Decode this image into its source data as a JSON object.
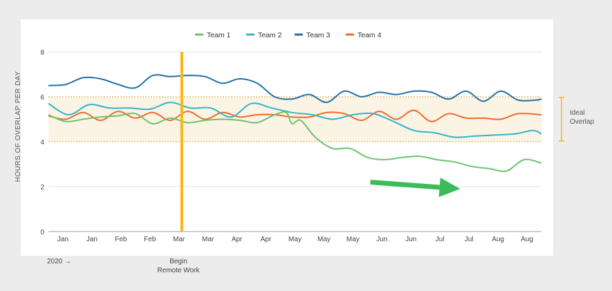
{
  "chart_data": {
    "type": "line",
    "x_labels": [
      "Jan",
      "Jan",
      "Feb",
      "Feb",
      "Mar",
      "Mar",
      "Apr",
      "Apr",
      "May",
      "May",
      "May",
      "Jun",
      "Jun",
      "Jul",
      "Jul",
      "Aug",
      "Aug"
    ],
    "x_range": [
      0,
      17
    ],
    "ylabel": "HOURS OF OVERLAP PER DAY",
    "ylim": [
      0,
      8
    ],
    "y_ticks": [
      0,
      2,
      4,
      6,
      8
    ],
    "grid": true,
    "legend_position": "top-center",
    "series": [
      {
        "name": "Team 1",
        "color": "#6cc26c",
        "x": [
          0,
          0.6,
          1.2,
          1.8,
          2.4,
          3.0,
          3.6,
          4.2,
          4.8,
          5.4,
          6.0,
          6.6,
          7.2,
          7.8,
          8.2,
          8.4,
          8.7,
          9.2,
          9.8,
          10.4,
          11.0,
          11.6,
          12.2,
          12.8,
          13.4,
          14.0,
          14.6,
          15.2,
          15.8,
          16.4,
          17.0
        ],
        "y": [
          5.2,
          4.9,
          5.0,
          5.1,
          5.15,
          5.25,
          4.8,
          5.05,
          4.85,
          4.95,
          5.0,
          4.95,
          4.85,
          5.2,
          5.3,
          4.8,
          4.95,
          4.2,
          3.7,
          3.7,
          3.3,
          3.2,
          3.3,
          3.35,
          3.2,
          3.1,
          2.9,
          2.8,
          2.7,
          3.2,
          3.05
        ]
      },
      {
        "name": "Team 2",
        "color": "#30b4c8",
        "x": [
          0,
          0.7,
          1.4,
          2.1,
          2.8,
          3.5,
          4.2,
          4.9,
          5.6,
          6.3,
          7.0,
          7.7,
          8.4,
          9.1,
          9.8,
          10.5,
          11.2,
          11.9,
          12.6,
          13.3,
          14.0,
          14.7,
          15.4,
          16.1,
          16.7,
          17.0
        ],
        "y": [
          5.7,
          5.2,
          5.65,
          5.5,
          5.5,
          5.45,
          5.75,
          5.5,
          5.5,
          5.1,
          5.7,
          5.5,
          5.3,
          5.2,
          5.0,
          5.2,
          5.25,
          4.9,
          4.5,
          4.4,
          4.2,
          4.25,
          4.3,
          4.35,
          4.5,
          4.35
        ]
      },
      {
        "name": "Team 3",
        "color": "#1f6fa8",
        "x": [
          0,
          0.6,
          1.2,
          1.8,
          2.4,
          3.0,
          3.6,
          4.2,
          4.8,
          5.4,
          6.0,
          6.6,
          7.2,
          7.8,
          8.4,
          9.0,
          9.6,
          10.2,
          10.8,
          11.4,
          12.0,
          12.6,
          13.2,
          13.8,
          14.4,
          15.0,
          15.6,
          16.2,
          16.8,
          17.0
        ],
        "y": [
          6.5,
          6.55,
          6.85,
          6.8,
          6.55,
          6.4,
          6.95,
          6.9,
          6.95,
          6.9,
          6.6,
          6.8,
          6.6,
          6.0,
          5.9,
          6.1,
          5.75,
          6.25,
          6.0,
          6.2,
          6.1,
          6.25,
          6.2,
          5.9,
          6.25,
          5.8,
          6.25,
          5.85,
          5.85,
          5.9
        ]
      },
      {
        "name": "Team 4",
        "color": "#f26a2a",
        "x": [
          0,
          0.6,
          1.2,
          1.8,
          2.4,
          3.0,
          3.6,
          4.2,
          4.8,
          5.4,
          6.0,
          6.6,
          7.2,
          7.8,
          8.4,
          9.0,
          9.6,
          10.2,
          10.8,
          11.4,
          12.0,
          12.6,
          13.2,
          13.8,
          14.4,
          15.0,
          15.6,
          16.2,
          17.0
        ],
        "y": [
          5.15,
          5.0,
          5.3,
          4.95,
          5.35,
          5.05,
          5.3,
          4.95,
          5.35,
          5.0,
          5.3,
          5.1,
          5.2,
          5.2,
          5.1,
          5.1,
          5.3,
          5.25,
          4.95,
          5.35,
          5.0,
          5.4,
          4.9,
          5.25,
          5.05,
          5.05,
          5.0,
          5.25,
          5.2
        ]
      }
    ],
    "ideal_band": {
      "from": 4,
      "to": 6
    },
    "annotations": {
      "ideal_label_line1": "Ideal",
      "ideal_label_line2": "Overlap",
      "start_label": "2020 →",
      "event_label_line1": "Begin",
      "event_label_line2": "Remote Work",
      "event_x": 4.6,
      "trend_arrow": {
        "x_from": 11.1,
        "y_from": 2.2,
        "x_to": 14.2,
        "y_to": 1.9,
        "color": "#3dbb5b"
      },
      "event_line_color": "#f9b617",
      "band_color": "#fbf3e4",
      "band_border_color": "#d9b676"
    }
  }
}
